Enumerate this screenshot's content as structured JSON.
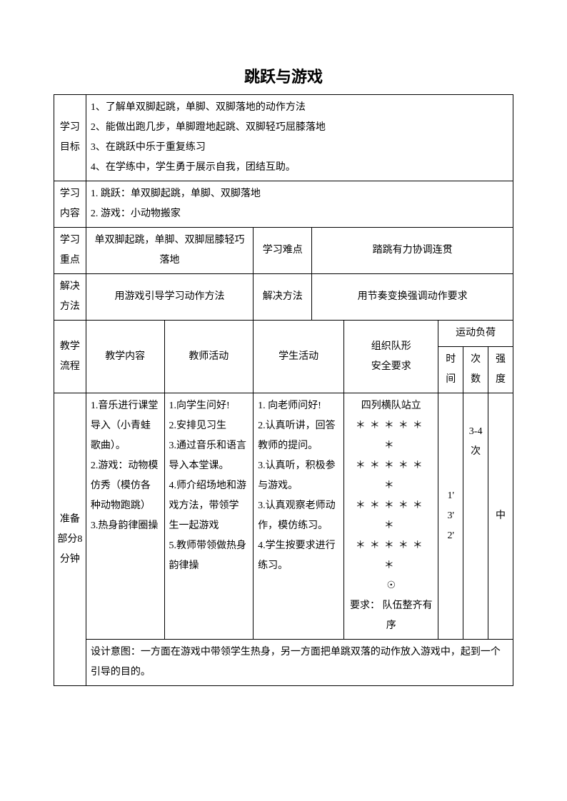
{
  "title": "跳跃与游戏",
  "labels": {
    "learn_goal": "学习目标",
    "learn_content": "学习内容",
    "learn_focus": "学习重点",
    "learn_difficulty": "学习难点",
    "solve_method": "解决方法",
    "teach_flow": "教学流程",
    "teach_content": "教学内容",
    "teacher_activity": "教师活动",
    "student_activity": "学生活动",
    "org_safety": "组织队形\n安全要求",
    "load": "运动负荷",
    "time": "时间",
    "count": "次数",
    "intensity": "强度",
    "prep_section": "准备部分8分钟"
  },
  "goals": "1、了解单双脚起跳，单脚、双脚落地的动作方法\n2、能做出跑几步，单脚蹬地起跳、双脚轻巧屈膝落地\n3、在跳跃中乐于重复练习\n4、在学练中，学生勇于展示自我，团结互助。",
  "content": "1.  跳跃：单双脚起跳，单脚、双脚落地\n2.  游戏：小动物搬家",
  "focus": "单双脚起跳，单脚、双脚屈膝轻巧落地",
  "difficulty": "踏跳有力协调连贯",
  "solve1": "用游戏引导学习动作方法",
  "solve2": "用节奏变换强调动作要求",
  "prep": {
    "teach_content": "1.音乐进行课堂导入（小青蛙歌曲）。\n2.游戏：动物模仿秀（模仿各种动物跑跳）\n3.热身韵律圈操",
    "teacher_activity": "1.向学生问好!\n2.安排见习生\n3.通过音乐和语言导入本堂课。\n4.师介绍场地和游戏方法，带领学生一起游戏\n5.教师带领做热身韵律操",
    "student_activity": "1. 向老师问好!\n2.认真听讲，回答教师的提问。\n3.认真听，积极参与游戏。\n3.认真观察老师动作，模仿练习。\n4.学生按要求进行练习。",
    "formation_head": "四列横队站立",
    "formation_note": "要求：  队伍整齐有序",
    "time": "1'\n3'\n2'",
    "count": "3-4次",
    "intensity": "中",
    "design": "设计意图：一方面在游戏中带领学生热身，另一方面把单跳双落的动作放入游戏中，起到一个引导的目的。"
  }
}
